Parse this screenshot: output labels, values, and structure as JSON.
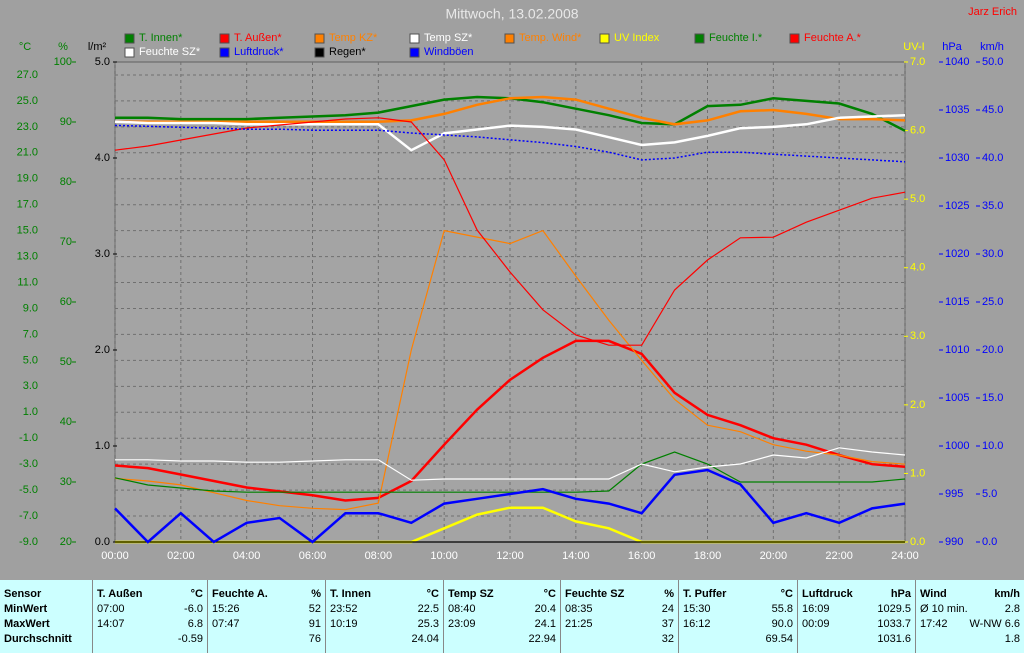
{
  "chart_data": {
    "type": "line",
    "title": "Mittwoch, 13.02.2008",
    "author": "Jarz Erich",
    "grid": true,
    "x": [
      0,
      1,
      2,
      3,
      4,
      5,
      6,
      7,
      8,
      9,
      10,
      11,
      12,
      13,
      14,
      15,
      16,
      17,
      18,
      19,
      20,
      21,
      22,
      23,
      24
    ],
    "xlim": [
      0,
      24
    ],
    "xticks": [
      {
        "value": 0,
        "label": "00:00"
      },
      {
        "value": 2,
        "label": "02:00"
      },
      {
        "value": 4,
        "label": "04:00"
      },
      {
        "value": 6,
        "label": "06:00"
      },
      {
        "value": 8,
        "label": "08:00"
      },
      {
        "value": 10,
        "label": "10:00"
      },
      {
        "value": 12,
        "label": "12:00"
      },
      {
        "value": 14,
        "label": "14:00"
      },
      {
        "value": 16,
        "label": "16:00"
      },
      {
        "value": 18,
        "label": "18:00"
      },
      {
        "value": 20,
        "label": "20:00"
      },
      {
        "value": 22,
        "label": "22:00"
      },
      {
        "value": 24,
        "label": "24:00"
      }
    ],
    "axes": [
      {
        "label": "°C",
        "side": "left",
        "color": "#008000",
        "lim": [
          -9,
          28
        ],
        "ticks": [
          {
            "value": 27,
            "label": "27.0"
          },
          {
            "value": 25,
            "label": "25.0"
          },
          {
            "value": 23,
            "label": "23.0"
          },
          {
            "value": 21,
            "label": "21.0"
          },
          {
            "value": 19,
            "label": "19.0"
          },
          {
            "value": 17,
            "label": "17.0"
          },
          {
            "value": 15,
            "label": "15.0"
          },
          {
            "value": 13,
            "label": "13.0"
          },
          {
            "value": 11,
            "label": "11.0"
          },
          {
            "value": 9,
            "label": "9.0"
          },
          {
            "value": 7,
            "label": "7.0"
          },
          {
            "value": 5,
            "label": "5.0"
          },
          {
            "value": 3,
            "label": "3.0"
          },
          {
            "value": 1,
            "label": "1.0"
          },
          {
            "value": -1,
            "label": "-1.0"
          },
          {
            "value": -3,
            "label": "-3.0"
          },
          {
            "value": -5,
            "label": "-5.0"
          },
          {
            "value": -7,
            "label": "-7.0"
          },
          {
            "value": -9,
            "label": "-9.0"
          }
        ]
      },
      {
        "label": "%",
        "side": "left",
        "color": "#008000",
        "lim": [
          20,
          100
        ],
        "ticks": [
          100,
          90,
          80,
          70,
          60,
          50,
          40,
          30,
          20
        ]
      },
      {
        "label": "l/m²",
        "side": "left",
        "color": "#000000",
        "lim": [
          0,
          5
        ],
        "ticks": [
          {
            "value": 5,
            "label": "5.0"
          },
          {
            "value": 4,
            "label": "4.0"
          },
          {
            "value": 3,
            "label": "3.0"
          },
          {
            "value": 2,
            "label": "2.0"
          },
          {
            "value": 1,
            "label": "1.0"
          },
          {
            "value": 0,
            "label": "0.0"
          }
        ]
      },
      {
        "label": "UV-I",
        "side": "right",
        "color": "#ffff00",
        "lim": [
          0,
          7
        ],
        "ticks": [
          {
            "value": 7,
            "label": "7.0"
          },
          {
            "value": 6,
            "label": "6.0"
          },
          {
            "value": 5,
            "label": "5.0"
          },
          {
            "value": 4,
            "label": "4.0"
          },
          {
            "value": 3,
            "label": "3.0"
          },
          {
            "value": 2,
            "label": "2.0"
          },
          {
            "value": 1,
            "label": "1.0"
          },
          {
            "value": 0,
            "label": "0.0"
          }
        ]
      },
      {
        "label": "hPa",
        "side": "right",
        "color": "#0000ff",
        "lim": [
          990,
          1040
        ],
        "ticks": [
          1040,
          1035,
          1030,
          1025,
          1020,
          1015,
          1010,
          1005,
          1000,
          995,
          990
        ]
      },
      {
        "label": "km/h",
        "side": "right",
        "color": "#0000ff",
        "lim": [
          0,
          50
        ],
        "ticks": [
          {
            "value": 50,
            "label": "50.0"
          },
          {
            "value": 45,
            "label": "45.0"
          },
          {
            "value": 40,
            "label": "40.0"
          },
          {
            "value": 35,
            "label": "35.0"
          },
          {
            "value": 30,
            "label": "30.0"
          },
          {
            "value": 25,
            "label": "25.0"
          },
          {
            "value": 20,
            "label": "20.0"
          },
          {
            "value": 15,
            "label": "15.0"
          },
          {
            "value": 10,
            "label": "10.0"
          },
          {
            "value": 5,
            "label": "5.0"
          },
          {
            "value": 0,
            "label": "0.0"
          }
        ]
      }
    ],
    "series": [
      {
        "name": "T. Innen*",
        "color": "#008000",
        "axis": 0,
        "style": "thick",
        "values": [
          23.7,
          23.7,
          23.6,
          23.6,
          23.6,
          23.7,
          23.8,
          23.9,
          24.1,
          24.6,
          25.1,
          25.3,
          25.2,
          24.9,
          24.4,
          23.9,
          23.3,
          23.2,
          24.6,
          24.7,
          25.2,
          25.0,
          24.8,
          24.0,
          22.7
        ]
      },
      {
        "name": "T. Außen*",
        "color": "#ff0000",
        "axis": 0,
        "style": "thick",
        "values": [
          -3.1,
          -3.3,
          -3.8,
          -4.3,
          -4.8,
          -5.1,
          -5.4,
          -5.8,
          -5.6,
          -4.3,
          -1.5,
          1.2,
          3.5,
          5.2,
          6.5,
          6.5,
          5.5,
          2.5,
          0.8,
          0.0,
          -1.0,
          -1.5,
          -2.3,
          -3.0,
          -3.2
        ]
      },
      {
        "name": "Temp KZ*",
        "color": "#ff8000",
        "axis": 0,
        "style": "thick",
        "values": [
          23.4,
          23.4,
          23.4,
          23.4,
          23.4,
          23.4,
          23.4,
          23.4,
          23.4,
          23.5,
          24.0,
          24.7,
          25.2,
          25.3,
          25.1,
          24.4,
          23.7,
          23.2,
          23.5,
          24.2,
          24.3,
          24.0,
          23.6,
          23.6,
          23.5
        ]
      },
      {
        "name": "Temp SZ*",
        "color": "#ffffff",
        "axis": 0,
        "style": "thick",
        "values": [
          23.4,
          23.3,
          23.3,
          23.3,
          23.2,
          23.2,
          23.2,
          23.2,
          23.2,
          21.2,
          22.5,
          22.8,
          23.1,
          23.0,
          22.8,
          22.2,
          21.6,
          21.8,
          22.3,
          22.9,
          23.0,
          23.2,
          23.7,
          23.8,
          23.9
        ]
      },
      {
        "name": "Temp. Wind*",
        "color": "#ff8000",
        "axis": 0,
        "style": "thin",
        "values": [
          -4.1,
          -4.3,
          -4.6,
          -5.2,
          -5.8,
          -6.2,
          -6.4,
          -6.5,
          -6.0,
          5.8,
          15.0,
          14.5,
          14.0,
          15.0,
          11.5,
          8.1,
          5.0,
          2.0,
          0.0,
          -0.5,
          -1.5,
          -2.0,
          -2.3,
          -2.8,
          -3.0
        ]
      },
      {
        "name": "UV Index",
        "color": "#ffff00",
        "axis": 3,
        "style": "thick",
        "values": [
          0,
          0,
          0,
          0,
          0,
          0,
          0,
          0,
          0,
          0,
          0.2,
          0.4,
          0.5,
          0.5,
          0.3,
          0.2,
          0,
          0,
          0,
          0,
          0,
          0,
          0,
          0,
          0
        ]
      },
      {
        "name": "Feuchte I.*",
        "color": "#008000",
        "axis": 1,
        "style": "thin",
        "values": [
          30.7,
          29.5,
          29,
          28.5,
          28.3,
          28.3,
          28.3,
          28.3,
          28.3,
          28.3,
          28.3,
          28.3,
          28.3,
          28.3,
          28.3,
          28.5,
          33,
          35,
          33,
          30,
          30,
          30,
          30,
          30,
          30.5
        ]
      },
      {
        "name": "Feuchte A.*",
        "color": "#ff0000",
        "axis": 1,
        "style": "thin",
        "values": [
          85.3,
          86,
          87,
          88,
          89,
          89.5,
          90,
          90.5,
          90.7,
          90,
          83.7,
          72,
          65,
          58.7,
          54.5,
          52.8,
          52.8,
          62,
          67,
          70.7,
          70.8,
          73.3,
          75.3,
          77.3,
          78.3
        ]
      },
      {
        "name": "Feuchte SZ*",
        "color": "#ffffff",
        "axis": 1,
        "style": "thin",
        "values": [
          33.7,
          33.7,
          33.5,
          33.5,
          33.3,
          33.3,
          33.5,
          33.7,
          33.7,
          30.3,
          30.5,
          30.5,
          30.5,
          30.5,
          30.5,
          30.5,
          33.0,
          31.7,
          32.5,
          33.0,
          34.5,
          34.0,
          35.7,
          35.0,
          34.5
        ]
      },
      {
        "name": "Luftdruck*",
        "color": "#0000ff",
        "axis": 4,
        "style": "dotted",
        "values": [
          1033.4,
          1033.3,
          1033.2,
          1033.1,
          1033.0,
          1033.0,
          1032.9,
          1032.9,
          1032.9,
          1032.6,
          1032.4,
          1032.2,
          1031.9,
          1031.6,
          1031.2,
          1030.6,
          1029.8,
          1030.0,
          1030.6,
          1030.6,
          1030.4,
          1030.2,
          1030.0,
          1029.8,
          1029.6
        ]
      },
      {
        "name": "Regen*",
        "color": "#000000",
        "axis": 2,
        "style": "thin",
        "values": [
          0,
          0,
          0,
          0,
          0,
          0,
          0,
          0,
          0,
          0,
          0,
          0,
          0,
          0,
          0,
          0,
          0,
          0,
          0,
          0,
          0,
          0,
          0,
          0,
          0
        ]
      },
      {
        "name": "Windböen",
        "color": "#0000ff",
        "axis": 5,
        "style": "thick",
        "values": [
          3.5,
          0,
          3,
          0,
          2,
          2.5,
          0,
          3,
          3,
          2,
          4,
          4.5,
          5,
          5.5,
          4.5,
          4,
          3,
          7,
          7.5,
          6,
          2,
          3,
          2,
          3.5,
          4
        ]
      }
    ]
  },
  "table": {
    "row_labels": [
      "Sensor",
      "MinWert",
      "MaxWert",
      "Durchschnitt"
    ],
    "columns": [
      {
        "name": "T. Außen",
        "unit": "°C",
        "min": {
          "time": "07:00",
          "value": "-6.0"
        },
        "max": {
          "time": "14:07",
          "value": "6.8"
        },
        "avg": "-0.59"
      },
      {
        "name": "Feuchte A.",
        "unit": "%",
        "min": {
          "time": "15:26",
          "value": "52"
        },
        "max": {
          "time": "07:47",
          "value": "91"
        },
        "avg": "76"
      },
      {
        "name": "T. Innen",
        "unit": "°C",
        "min": {
          "time": "23:52",
          "value": "22.5"
        },
        "max": {
          "time": "10:19",
          "value": "25.3"
        },
        "avg": "24.04"
      },
      {
        "name": "Temp SZ",
        "unit": "°C",
        "min": {
          "time": "08:40",
          "value": "20.4"
        },
        "max": {
          "time": "23:09",
          "value": "24.1"
        },
        "avg": "22.94"
      },
      {
        "name": "Feuchte SZ",
        "unit": "%",
        "min": {
          "time": "08:35",
          "value": "24"
        },
        "max": {
          "time": "21:25",
          "value": "37"
        },
        "avg": "32"
      },
      {
        "name": "T. Puffer",
        "unit": "°C",
        "min": {
          "time": "15:30",
          "value": "55.8"
        },
        "max": {
          "time": "16:12",
          "value": "90.0"
        },
        "avg": "69.54"
      },
      {
        "name": "Luftdruck",
        "unit": "hPa",
        "min": {
          "time": "16:09",
          "value": "1029.5"
        },
        "max": {
          "time": "00:09",
          "value": "1033.7"
        },
        "avg": "1031.6"
      },
      {
        "name": "Wind",
        "unit": "km/h",
        "min": {
          "time": "Ø 10 min.",
          "value": "2.8"
        },
        "max": {
          "time": "17:42",
          "value": "W-NW 6.6"
        },
        "avg": "1.8"
      }
    ]
  }
}
